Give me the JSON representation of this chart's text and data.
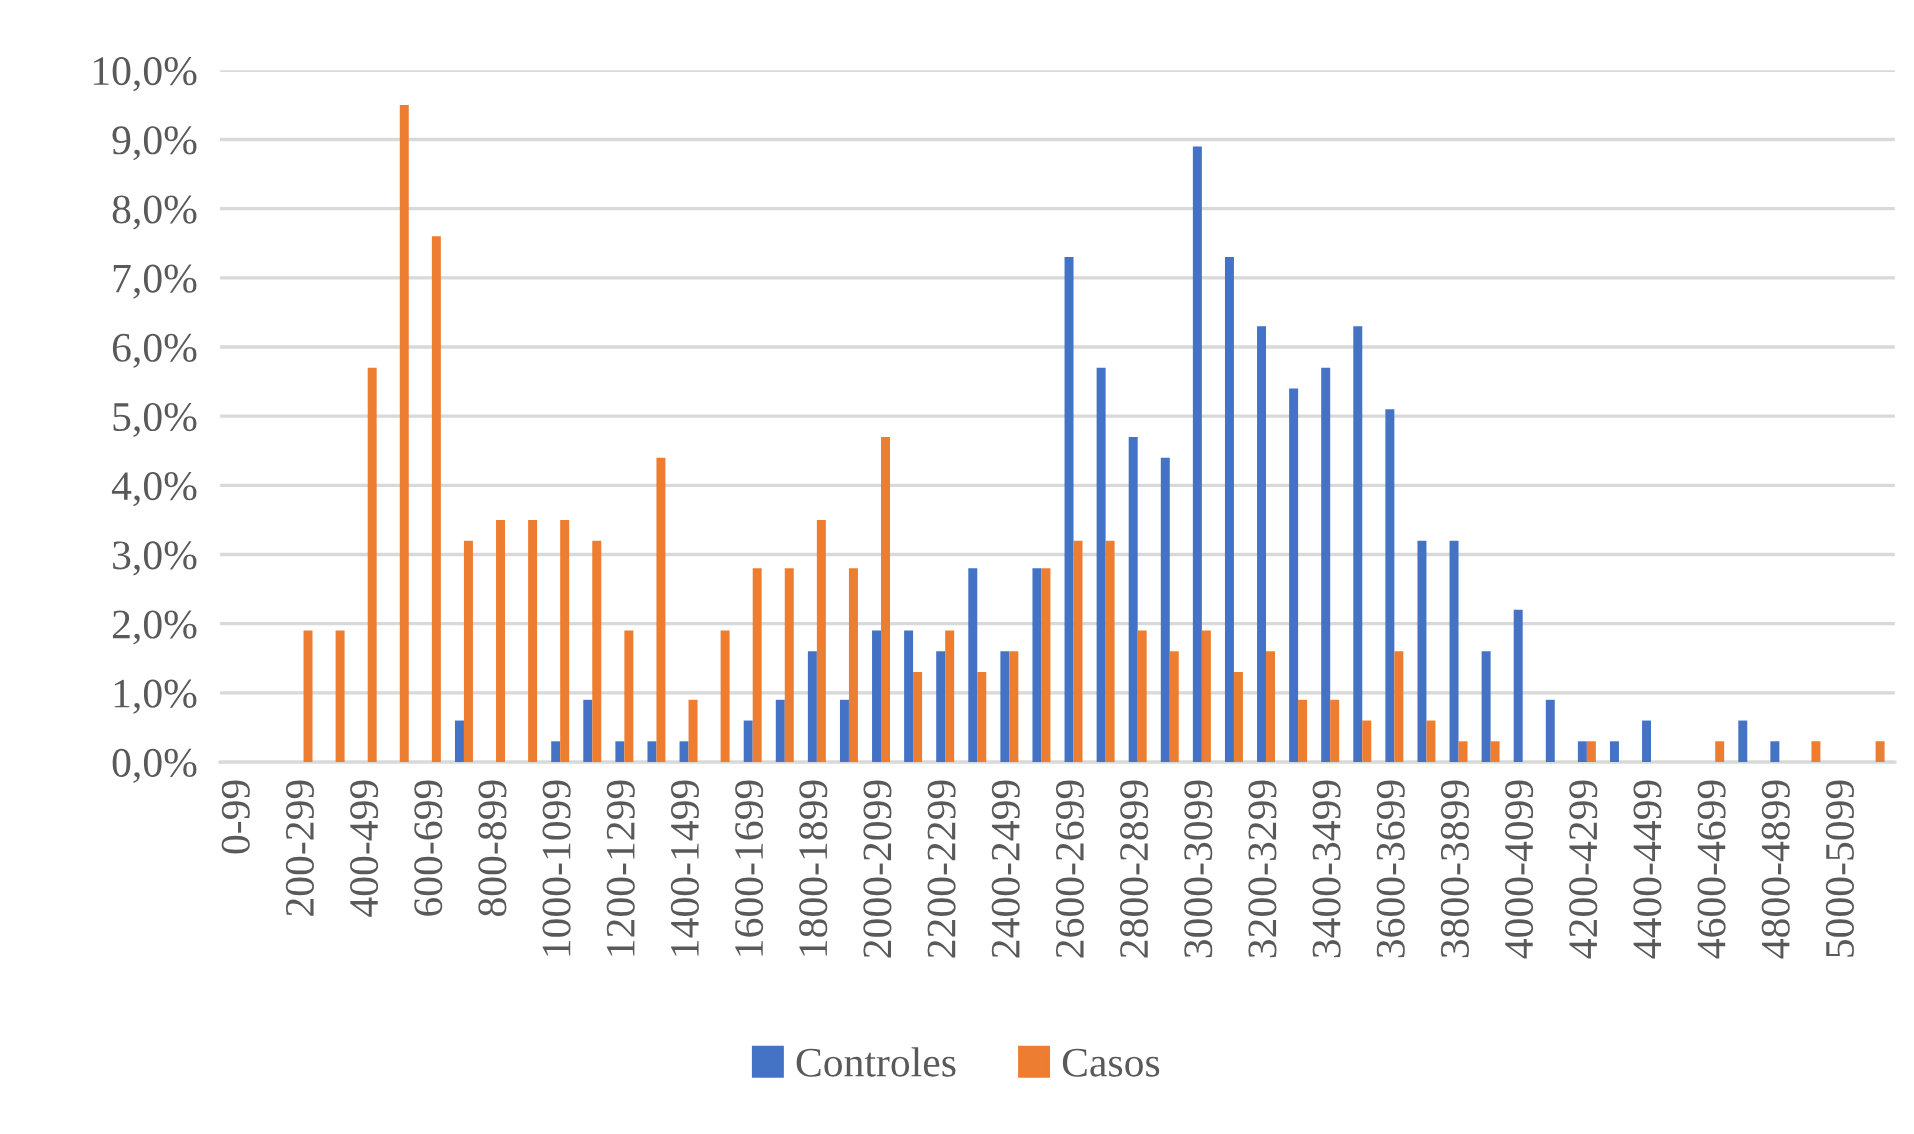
{
  "chart_data": {
    "type": "bar",
    "categories": [
      "0-99",
      null,
      "200-299",
      null,
      "400-499",
      null,
      "600-699",
      null,
      "800-899",
      null,
      "1000-1099",
      null,
      "1200-1299",
      null,
      "1400-1499",
      null,
      "1600-1699",
      null,
      "1800-1899",
      null,
      "2000-2099",
      null,
      "2200-2299",
      null,
      "2400-2499",
      null,
      "2600-2699",
      null,
      "2800-2899",
      null,
      "3000-3099",
      null,
      "3200-3299",
      null,
      "3400-3499",
      null,
      "3600-3699",
      null,
      "3800-3899",
      null,
      "4000-4099",
      null,
      "4200-4299",
      null,
      "4400-4499",
      null,
      "4600-4699",
      null,
      "4800-4899",
      null,
      "5000-5099",
      null
    ],
    "series": [
      {
        "name": "Controles",
        "color": "#4472c4",
        "values": [
          0,
          0,
          0,
          0,
          0,
          0,
          0,
          0.6,
          0,
          0,
          0.3,
          0.9,
          0.3,
          0.3,
          0.3,
          0,
          0.6,
          0.9,
          1.6,
          0.9,
          1.9,
          1.9,
          1.6,
          2.8,
          1.6,
          2.8,
          7.3,
          5.7,
          4.7,
          4.4,
          8.9,
          7.3,
          6.3,
          5.4,
          5.7,
          6.3,
          5.1,
          3.2,
          3.2,
          1.6,
          2.2,
          0.9,
          0.3,
          0.3,
          0.6,
          0,
          0,
          0.6,
          0.3,
          0,
          0,
          0
        ]
      },
      {
        "name": "Casos",
        "color": "#ed7d31",
        "values": [
          0,
          0,
          1.9,
          1.9,
          5.7,
          9.5,
          7.6,
          3.2,
          3.5,
          3.5,
          3.5,
          3.2,
          1.9,
          4.4,
          0.9,
          1.9,
          2.8,
          2.8,
          3.5,
          2.8,
          4.7,
          1.3,
          1.9,
          1.3,
          1.6,
          2.8,
          3.2,
          3.2,
          1.9,
          1.6,
          1.9,
          1.3,
          1.6,
          0.9,
          0.9,
          0.6,
          1.6,
          0.6,
          0.3,
          0.3,
          0,
          0,
          0.3,
          0,
          0,
          0,
          0.3,
          0,
          0,
          0.3,
          0,
          0.3
        ]
      }
    ],
    "ylim": [
      0,
      10
    ],
    "yticks": [
      {
        "value": 0,
        "label": "0,0%"
      },
      {
        "value": 1,
        "label": "1,0%"
      },
      {
        "value": 2,
        "label": "2,0%"
      },
      {
        "value": 3,
        "label": "3,0%"
      },
      {
        "value": 4,
        "label": "4,0%"
      },
      {
        "value": 5,
        "label": "5,0%"
      },
      {
        "value": 6,
        "label": "6,0%"
      },
      {
        "value": 7,
        "label": "7,0%"
      },
      {
        "value": 8,
        "label": "8,0%"
      },
      {
        "value": 9,
        "label": "9,0%"
      },
      {
        "value": 10,
        "label": "10,0%"
      }
    ],
    "grid": "y",
    "legend": "bottom"
  }
}
